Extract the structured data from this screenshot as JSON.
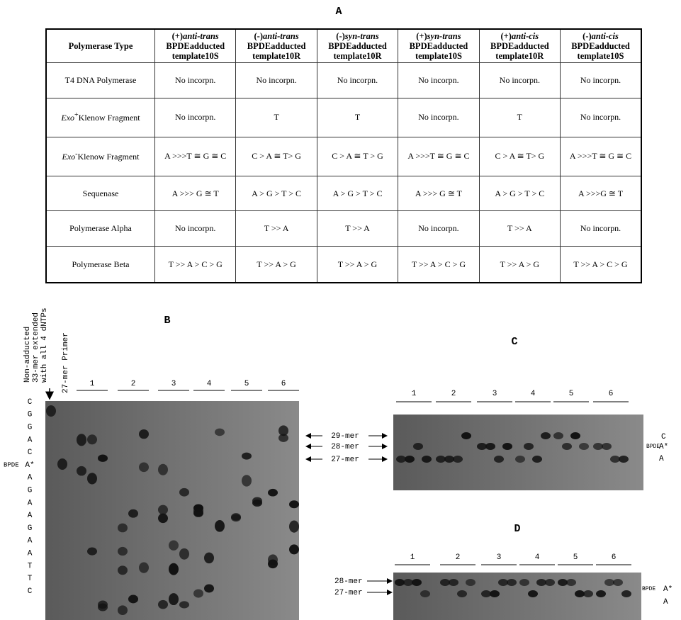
{
  "panel_a": {
    "label": "A",
    "table": {
      "header": [
        {
          "text": "Polymerase Type"
        },
        {
          "sign": "(+)",
          "isomer": "anti-trans",
          "adduct": "BPDEadducted",
          "template": "template10S"
        },
        {
          "sign": "(-)",
          "isomer": "anti-trans",
          "adduct": "BPDEadducted",
          "template": "template10R"
        },
        {
          "sign": "(-)",
          "isomer": "syn-trans",
          "adduct": "BPDEadducted",
          "template": "template10R"
        },
        {
          "sign": "(+)",
          "isomer": "syn-trans",
          "adduct": "BPDEadducted",
          "template": "template10S"
        },
        {
          "sign": "(+)",
          "isomer": "anti-cis",
          "adduct": "BPDEadducted",
          "template": "template10R"
        },
        {
          "sign": "(-)",
          "isomer": "anti-cis",
          "adduct": "BPDEadducted",
          "template": "template10S"
        }
      ],
      "rows": [
        {
          "label": {
            "text": "T4 DNA Polymerase"
          },
          "cells": [
            "No incorpn.",
            "No incorpn.",
            "No incorpn.",
            "No incorpn.",
            "No incorpn.",
            "No incorpn."
          ]
        },
        {
          "label": {
            "italic": "Exo",
            "sup": "+",
            "text": "Klenow Fragment"
          },
          "cells": [
            "No incorpn.",
            "T",
            "T",
            "No incorpn.",
            "T",
            "No incorpn."
          ]
        },
        {
          "label": {
            "italic": "Exo",
            "sup": "-",
            "text": "Klenow Fragment"
          },
          "cells": [
            "A >>>T ≅ G ≅ C",
            "C > A ≅ T> G",
            "C > A ≅ T > G",
            "A >>>T ≅ G ≅ C",
            "C > A ≅ T> G",
            "A >>>T ≅ G ≅ C"
          ]
        },
        {
          "label": {
            "text": "Sequenase"
          },
          "cells": [
            "A >>> G ≅ T",
            "A > G > T > C",
            "A > G > T > C",
            "A >>> G ≅ T",
            "A > G > T > C",
            "A >>>G ≅ T"
          ]
        },
        {
          "label": {
            "text": "Polymerase Alpha"
          },
          "cells": [
            "No incorpn.",
            "T >> A",
            "T >> A",
            "No incorpn.",
            "T >> A",
            "No incorpn."
          ]
        },
        {
          "label": {
            "text": "Polymerase Beta"
          },
          "cells": [
            "T >> A > C > G",
            "T >> A > G",
            "T >> A > G",
            "T >> A > C > G",
            "T >> A > G",
            "T >> A > C > G"
          ]
        }
      ]
    }
  },
  "panel_b": {
    "label": "B",
    "side_labels": [
      "Non-adducted",
      "33-mer extended",
      "with all 4 dNTPs"
    ],
    "primer_label": "27-mer Primer",
    "lanes": [
      "1",
      "2",
      "3",
      "4",
      "5",
      "6"
    ],
    "bpde": "BPDE",
    "sequence": [
      "C",
      "G",
      "G",
      "A",
      "C",
      "A*",
      "A",
      "G",
      "A",
      "A",
      "G",
      "A",
      "A",
      "T",
      "T",
      "C"
    ]
  },
  "markers": [
    "29-mer",
    "28-mer",
    "27-mer"
  ],
  "panel_c": {
    "label": "C",
    "lanes": [
      "1",
      "2",
      "3",
      "4",
      "5",
      "6"
    ],
    "bpde": "BPDE",
    "right_labels": [
      "C",
      "A*",
      "A"
    ]
  },
  "panel_d": {
    "label": "D",
    "lanes": [
      "1",
      "2",
      "3",
      "4",
      "5",
      "6"
    ],
    "markers": [
      "28-mer",
      "27-mer"
    ],
    "bpde": "BPDE",
    "right_labels": [
      "A*",
      "A"
    ]
  }
}
